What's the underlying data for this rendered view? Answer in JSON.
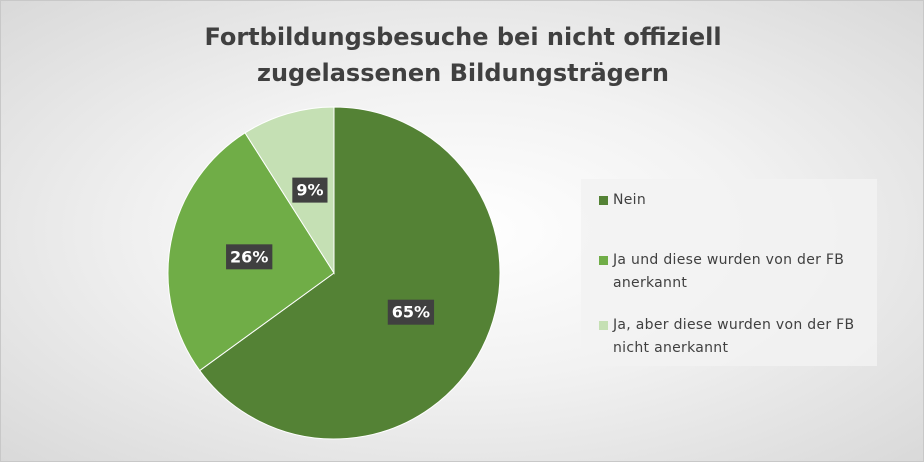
{
  "chart_data": {
    "type": "pie",
    "title": "Fortbildungsbesuche bei nicht offiziell zugelassenen Bildungsträgern",
    "categories": [
      "Nein",
      "Ja und diese wurden von der FB anerkannt",
      "Ja, aber diese wurden von der FB nicht anerkannt"
    ],
    "values": [
      65,
      26,
      9
    ],
    "value_labels": [
      "65%",
      "26%",
      "9%"
    ],
    "colors": [
      "#548235",
      "#70ad47",
      "#c5e0b4"
    ],
    "legend": "right"
  }
}
